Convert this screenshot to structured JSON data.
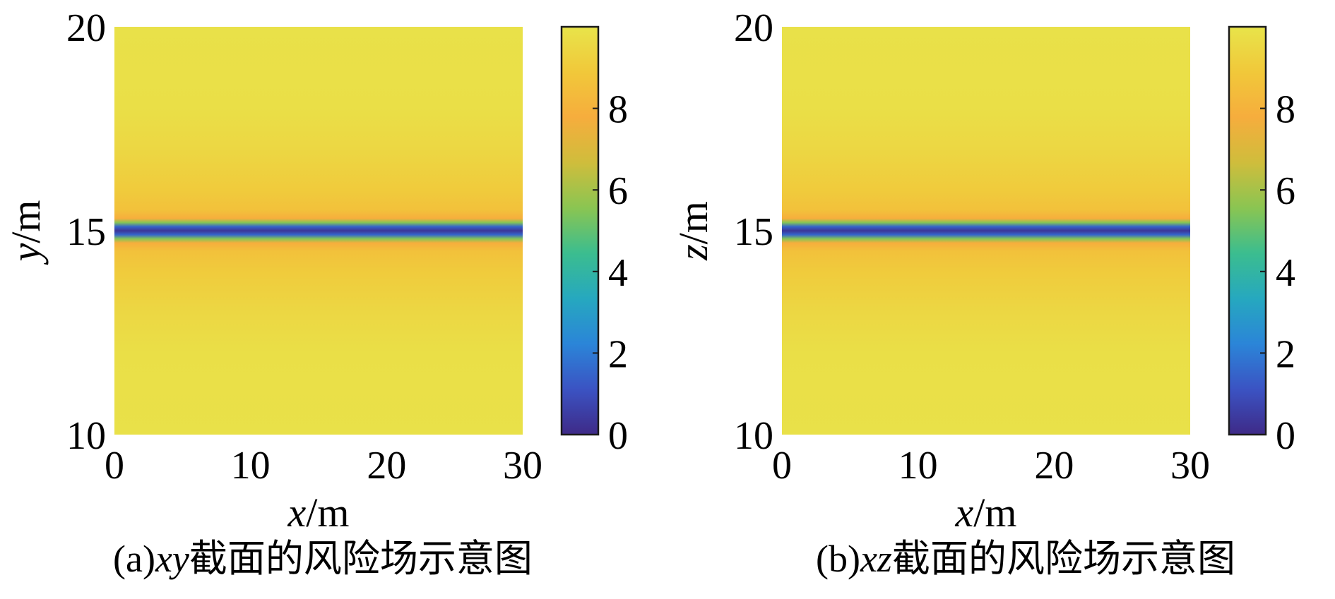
{
  "colors": {
    "colormap": [
      "#3e2a87",
      "#3b53c3",
      "#2b85d8",
      "#26a8bf",
      "#3bbd8f",
      "#8ac552",
      "#cfbd3c",
      "#f6ad3d",
      "#f1c83a",
      "#e8e44a"
    ]
  },
  "chart_data": [
    {
      "type": "heatmap",
      "title": "",
      "caption": {
        "prefix": "(a)",
        "italic": "xy",
        "suffix": "截面的风险场示意图"
      },
      "xlabel": {
        "var": "x",
        "unit": "/m"
      },
      "ylabel": {
        "var": "y",
        "unit": "/m"
      },
      "xlim": [
        0,
        30
      ],
      "ylim": [
        10,
        20
      ],
      "xticks": [
        "0",
        "10",
        "20",
        "30"
      ],
      "yticks": [
        "10",
        "15",
        "20"
      ],
      "colorbar": {
        "range": [
          0,
          10
        ],
        "ticks": [
          "0",
          "2",
          "4",
          "6",
          "8"
        ]
      },
      "field": {
        "description_values": "risk value vs y, uniform along x",
        "y": [
          10,
          12,
          13,
          14,
          14.5,
          14.7,
          14.8,
          14.9,
          15.0,
          15.1,
          15.2,
          15.3,
          15.5,
          16,
          17,
          18,
          20
        ],
        "value": [
          9.9,
          9.8,
          9.5,
          9.0,
          8.6,
          7.8,
          5.5,
          1.5,
          0.3,
          1.5,
          5.5,
          7.8,
          8.6,
          9.0,
          9.5,
          9.8,
          9.9
        ]
      }
    },
    {
      "type": "heatmap",
      "title": "",
      "caption": {
        "prefix": "(b)",
        "italic": "xz",
        "suffix": "截面的风险场示意图"
      },
      "xlabel": {
        "var": "x",
        "unit": "/m"
      },
      "ylabel": {
        "var": "z",
        "unit": "/m"
      },
      "xlim": [
        0,
        30
      ],
      "ylim": [
        10,
        20
      ],
      "xticks": [
        "0",
        "10",
        "20",
        "30"
      ],
      "yticks": [
        "10",
        "15",
        "20"
      ],
      "colorbar": {
        "range": [
          0,
          10
        ],
        "ticks": [
          "0",
          "2",
          "4",
          "6",
          "8"
        ]
      },
      "field": {
        "description_values": "risk value vs z, uniform along x",
        "y": [
          10,
          12,
          13,
          14,
          14.5,
          14.7,
          14.8,
          14.9,
          15.0,
          15.1,
          15.2,
          15.3,
          15.5,
          16,
          17,
          18,
          20
        ],
        "value": [
          9.9,
          9.8,
          9.5,
          9.0,
          8.6,
          7.8,
          5.5,
          1.5,
          0.3,
          1.5,
          5.5,
          7.8,
          8.6,
          9.0,
          9.5,
          9.8,
          9.9
        ]
      }
    }
  ]
}
